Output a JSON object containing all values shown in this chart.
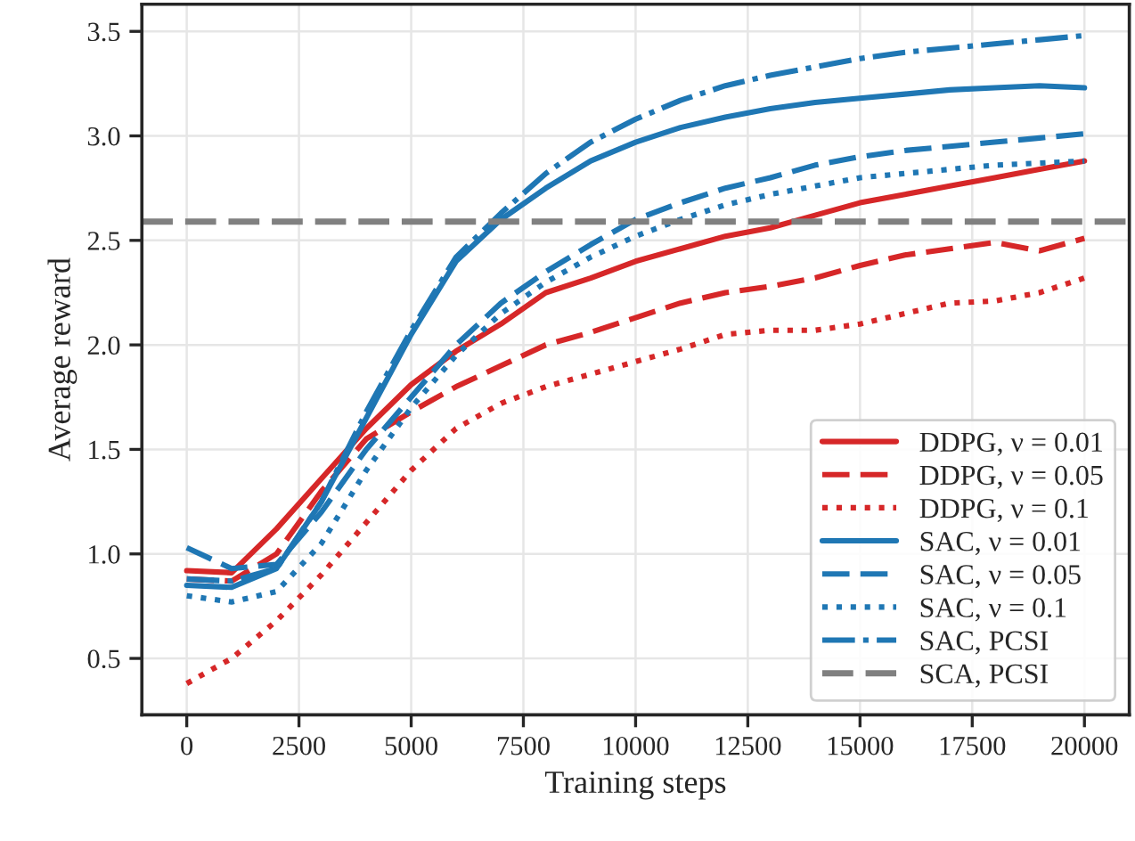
{
  "chart_data": {
    "type": "line",
    "xlabel": "Training steps",
    "ylabel": "Average reward",
    "x": [
      0,
      1000,
      2000,
      3000,
      4000,
      5000,
      6000,
      7000,
      8000,
      9000,
      10000,
      11000,
      12000,
      13000,
      14000,
      15000,
      16000,
      17000,
      18000,
      19000,
      20000
    ],
    "xlim": [
      -1000,
      21000
    ],
    "xticks": [
      0,
      2500,
      5000,
      7500,
      10000,
      12500,
      15000,
      17500,
      20000
    ],
    "ylim": [
      0.23,
      3.63
    ],
    "yticks": [
      0.5,
      {
        "value": 1,
        "label": "1.0"
      },
      1.5,
      {
        "value": 2,
        "label": "2.0"
      },
      2.5,
      {
        "value": 3,
        "label": "3.0"
      },
      3.5
    ],
    "grid": true,
    "legend": "bottom right",
    "series": [
      {
        "name": "DDPG, ν = 0.01",
        "color": "#d62728",
        "line_style": "solid",
        "values": [
          0.92,
          0.91,
          1.12,
          1.36,
          1.6,
          1.81,
          1.97,
          2.1,
          2.25,
          2.32,
          2.4,
          2.46,
          2.52,
          2.56,
          2.62,
          2.68,
          2.72,
          2.76,
          2.8,
          2.84,
          2.88
        ]
      },
      {
        "name": "DDPG, ν = 0.05",
        "color": "#d62728",
        "line_style": "dashed",
        "values": [
          0.88,
          0.87,
          1.0,
          1.3,
          1.55,
          1.68,
          1.8,
          1.9,
          2.0,
          2.06,
          2.13,
          2.2,
          2.25,
          2.28,
          2.32,
          2.38,
          2.43,
          2.46,
          2.49,
          2.45,
          2.51
        ]
      },
      {
        "name": "DDPG, ν = 0.1",
        "color": "#d62728",
        "line_style": "dotted",
        "values": [
          0.38,
          0.5,
          0.68,
          0.9,
          1.15,
          1.4,
          1.6,
          1.72,
          1.8,
          1.86,
          1.92,
          1.98,
          2.05,
          2.07,
          2.07,
          2.1,
          2.15,
          2.2,
          2.21,
          2.25,
          2.32
        ]
      },
      {
        "name": "SAC, ν = 0.01",
        "color": "#1f77b4",
        "line_style": "solid",
        "values": [
          0.85,
          0.84,
          0.93,
          1.25,
          1.65,
          2.05,
          2.4,
          2.6,
          2.75,
          2.88,
          2.97,
          3.04,
          3.09,
          3.13,
          3.16,
          3.18,
          3.2,
          3.22,
          3.23,
          3.24,
          3.23
        ]
      },
      {
        "name": "SAC, ν = 0.05",
        "color": "#1f77b4",
        "line_style": "dashed",
        "values": [
          1.03,
          0.93,
          0.95,
          1.2,
          1.5,
          1.75,
          2.0,
          2.2,
          2.35,
          2.48,
          2.6,
          2.68,
          2.75,
          2.8,
          2.86,
          2.9,
          2.93,
          2.95,
          2.97,
          2.99,
          3.01
        ]
      },
      {
        "name": "SAC, ν = 0.1",
        "color": "#1f77b4",
        "line_style": "dotted",
        "values": [
          0.8,
          0.77,
          0.82,
          1.05,
          1.4,
          1.7,
          1.95,
          2.15,
          2.3,
          2.42,
          2.52,
          2.6,
          2.67,
          2.72,
          2.76,
          2.8,
          2.82,
          2.84,
          2.86,
          2.87,
          2.88
        ]
      },
      {
        "name": "SAC, PCSI",
        "color": "#1f77b4",
        "line_style": "dashdot",
        "values": [
          0.88,
          0.87,
          0.93,
          1.25,
          1.68,
          2.07,
          2.42,
          2.63,
          2.82,
          2.97,
          3.08,
          3.17,
          3.24,
          3.29,
          3.33,
          3.37,
          3.4,
          3.42,
          3.44,
          3.46,
          3.48
        ]
      }
    ],
    "ref_lines": [
      {
        "axis": "y",
        "value": 2.59,
        "label": "SCA, PCSI",
        "color": "#808080",
        "line_style": "dashed"
      }
    ]
  }
}
